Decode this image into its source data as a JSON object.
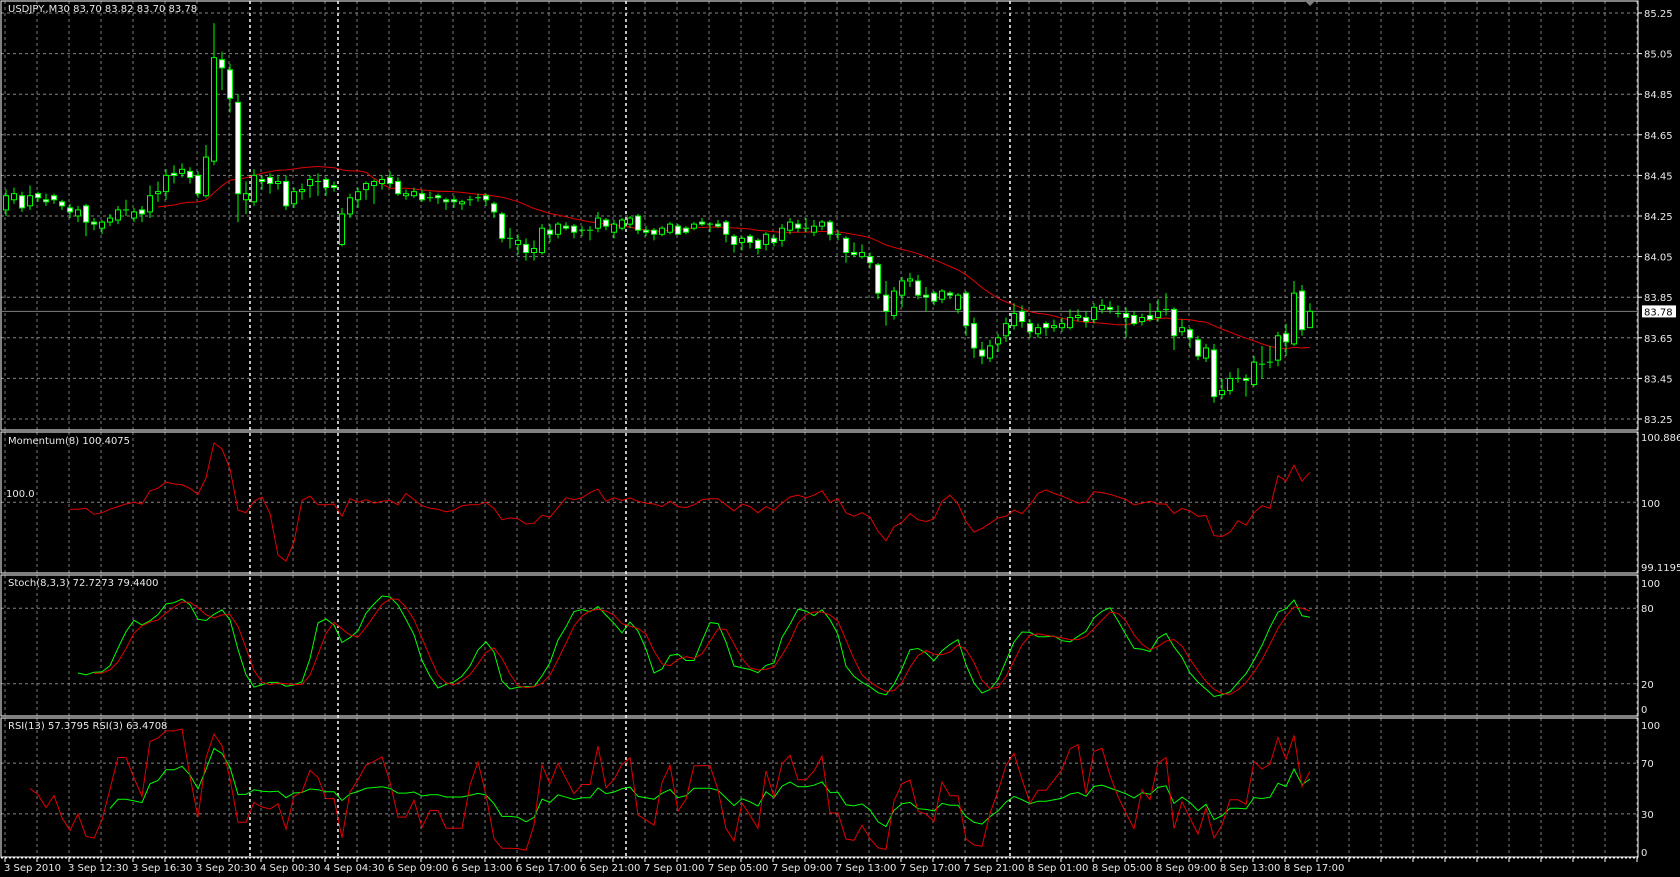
{
  "chart_data": {
    "type": "candlestick",
    "title": "USDJPY.,M30  83.70 83.82 83.70 83.78",
    "current_price": "83.78",
    "ylim": [
      83.25,
      85.25
    ],
    "y_tick_labels": [
      "85.25",
      "85.05",
      "84.85",
      "84.65",
      "84.45",
      "84.25",
      "84.05",
      "83.85",
      "83.65",
      "83.45",
      "83.25"
    ],
    "x_tick_labels": [
      "3 Sep 2010",
      "3 Sep 12:30",
      "3 Sep 16:30",
      "3 Sep 20:30",
      "4 Sep 00:30",
      "4 Sep 04:30",
      "6 Sep 09:00",
      "6 Sep 13:00",
      "6 Sep 17:00",
      "6 Sep 21:00",
      "7 Sep 01:00",
      "7 Sep 05:00",
      "7 Sep 09:00",
      "7 Sep 13:00",
      "7 Sep 17:00",
      "7 Sep 21:00",
      "8 Sep 01:00",
      "8 Sep 05:00",
      "8 Sep 09:00",
      "8 Sep 13:00",
      "8 Sep 17:00"
    ],
    "grid": true,
    "colors": {
      "background": "#000000",
      "candle": "#00ff00",
      "bear_body": "#ffffff",
      "ma": "#e00000",
      "grid": "#b0b0b0",
      "text": "#e8e8e8",
      "signal": "#e00000",
      "main": "#00ff00"
    },
    "bars_format": [
      "open",
      "high",
      "low",
      "close"
    ],
    "bars": [
      [
        84.28,
        84.38,
        84.25,
        84.35
      ],
      [
        84.33,
        84.39,
        84.31,
        84.36
      ],
      [
        84.35,
        84.37,
        84.27,
        84.29
      ],
      [
        84.3,
        84.4,
        84.28,
        84.35
      ],
      [
        84.36,
        84.37,
        84.32,
        84.34
      ],
      [
        84.33,
        84.36,
        84.3,
        84.32
      ],
      [
        84.35,
        84.36,
        84.31,
        84.33
      ],
      [
        84.32,
        84.33,
        84.28,
        84.3
      ],
      [
        84.29,
        84.31,
        84.24,
        84.27
      ],
      [
        84.25,
        84.3,
        84.22,
        84.28
      ],
      [
        84.3,
        84.31,
        84.15,
        84.22
      ],
      [
        84.22,
        84.24,
        84.18,
        84.21
      ],
      [
        84.19,
        84.23,
        84.16,
        84.22
      ],
      [
        84.22,
        84.26,
        84.2,
        84.24
      ],
      [
        84.23,
        84.3,
        84.21,
        84.28
      ],
      [
        84.28,
        84.33,
        84.25,
        84.28
      ],
      [
        84.24,
        84.29,
        84.22,
        84.27
      ],
      [
        84.28,
        84.3,
        84.22,
        84.26
      ],
      [
        84.27,
        84.4,
        84.24,
        84.35
      ],
      [
        84.36,
        84.42,
        84.32,
        84.37
      ],
      [
        84.37,
        84.48,
        84.33,
        84.45
      ],
      [
        84.46,
        84.5,
        84.41,
        84.45
      ],
      [
        84.46,
        84.51,
        84.44,
        84.48
      ],
      [
        84.47,
        84.49,
        84.41,
        84.44
      ],
      [
        84.45,
        84.47,
        84.34,
        84.36
      ],
      [
        84.35,
        84.6,
        84.34,
        84.54
      ],
      [
        84.52,
        85.2,
        84.5,
        85.03
      ],
      [
        85.02,
        85.06,
        84.87,
        84.98
      ],
      [
        84.97,
        85.0,
        84.76,
        84.83
      ],
      [
        84.81,
        84.85,
        84.22,
        84.36
      ],
      [
        84.33,
        84.42,
        84.26,
        84.36
      ],
      [
        84.32,
        84.48,
        84.3,
        84.45
      ],
      [
        84.43,
        84.45,
        84.38,
        84.42
      ],
      [
        84.44,
        84.46,
        84.36,
        84.41
      ],
      [
        84.41,
        84.45,
        84.38,
        84.42
      ],
      [
        84.42,
        84.45,
        84.28,
        84.3
      ],
      [
        84.31,
        84.39,
        84.29,
        84.37
      ],
      [
        84.37,
        84.41,
        84.33,
        84.38
      ],
      [
        84.4,
        84.45,
        84.34,
        84.43
      ],
      [
        84.42,
        84.46,
        84.35,
        84.42
      ],
      [
        84.43,
        84.44,
        84.35,
        84.39
      ],
      [
        84.4,
        84.42,
        84.37,
        84.39
      ],
      [
        84.11,
        84.29,
        84.1,
        84.26
      ],
      [
        84.26,
        84.36,
        84.24,
        84.34
      ],
      [
        84.33,
        84.39,
        84.29,
        84.37
      ],
      [
        84.38,
        84.42,
        84.33,
        84.41
      ],
      [
        84.4,
        84.43,
        84.31,
        84.42
      ],
      [
        84.41,
        84.45,
        84.38,
        84.43
      ],
      [
        84.44,
        84.47,
        84.39,
        84.41
      ],
      [
        84.42,
        84.44,
        84.35,
        84.36
      ],
      [
        84.35,
        84.38,
        84.33,
        84.36
      ],
      [
        84.35,
        84.39,
        84.34,
        84.37
      ],
      [
        84.36,
        84.38,
        84.32,
        84.33
      ],
      [
        84.34,
        84.37,
        84.32,
        84.34
      ],
      [
        84.35,
        84.36,
        84.31,
        84.34
      ],
      [
        84.33,
        84.34,
        84.28,
        84.32
      ],
      [
        84.33,
        84.35,
        84.29,
        84.32
      ],
      [
        84.31,
        84.33,
        84.28,
        84.32
      ],
      [
        84.33,
        84.35,
        84.3,
        84.33
      ],
      [
        84.34,
        84.36,
        84.32,
        84.34
      ],
      [
        84.35,
        84.36,
        84.3,
        84.33
      ],
      [
        84.31,
        84.32,
        84.24,
        84.27
      ],
      [
        84.26,
        84.27,
        84.12,
        84.14
      ],
      [
        84.14,
        84.19,
        84.09,
        84.14
      ],
      [
        84.11,
        84.16,
        84.06,
        84.13
      ],
      [
        84.11,
        84.14,
        84.03,
        84.07
      ],
      [
        84.07,
        84.13,
        84.03,
        84.09
      ],
      [
        84.07,
        84.21,
        84.06,
        84.19
      ],
      [
        84.18,
        84.21,
        84.12,
        84.16
      ],
      [
        84.16,
        84.22,
        84.14,
        84.21
      ],
      [
        84.2,
        84.22,
        84.18,
        84.19
      ],
      [
        84.2,
        84.21,
        84.14,
        84.17
      ],
      [
        84.18,
        84.2,
        84.15,
        84.18
      ],
      [
        84.18,
        84.2,
        84.13,
        84.18
      ],
      [
        84.19,
        84.27,
        84.17,
        84.24
      ],
      [
        84.23,
        84.24,
        84.18,
        84.2
      ],
      [
        84.17,
        84.23,
        84.14,
        84.21
      ],
      [
        84.19,
        84.24,
        84.18,
        84.23
      ],
      [
        84.21,
        84.25,
        84.19,
        84.24
      ],
      [
        84.25,
        84.26,
        84.16,
        84.18
      ],
      [
        84.18,
        84.2,
        84.15,
        84.17
      ],
      [
        84.18,
        84.19,
        84.13,
        84.16
      ],
      [
        84.16,
        84.2,
        84.15,
        84.19
      ],
      [
        84.17,
        84.22,
        84.16,
        84.21
      ],
      [
        84.2,
        84.21,
        84.16,
        84.16
      ],
      [
        84.19,
        84.2,
        84.16,
        84.17
      ],
      [
        84.19,
        84.22,
        84.18,
        84.21
      ],
      [
        84.22,
        84.24,
        84.2,
        84.21
      ],
      [
        84.21,
        84.22,
        84.17,
        84.21
      ],
      [
        84.21,
        84.23,
        84.19,
        84.2
      ],
      [
        84.22,
        84.23,
        84.12,
        84.16
      ],
      [
        84.15,
        84.16,
        84.07,
        84.11
      ],
      [
        84.12,
        84.15,
        84.08,
        84.14
      ],
      [
        84.15,
        84.16,
        84.09,
        84.12
      ],
      [
        84.13,
        84.14,
        84.06,
        84.09
      ],
      [
        84.11,
        84.17,
        84.08,
        84.16
      ],
      [
        84.14,
        84.16,
        84.1,
        84.12
      ],
      [
        84.13,
        84.21,
        84.1,
        84.19
      ],
      [
        84.18,
        84.24,
        84.16,
        84.22
      ],
      [
        84.21,
        84.23,
        84.17,
        84.19
      ],
      [
        84.19,
        84.24,
        84.17,
        84.19
      ],
      [
        84.17,
        84.23,
        84.15,
        84.2
      ],
      [
        84.2,
        84.23,
        84.18,
        84.22
      ],
      [
        84.22,
        84.23,
        84.13,
        84.16
      ],
      [
        84.16,
        84.18,
        84.13,
        84.16
      ],
      [
        84.14,
        84.15,
        84.02,
        84.07
      ],
      [
        84.07,
        84.12,
        84.05,
        84.06
      ],
      [
        84.05,
        84.11,
        84.04,
        84.07
      ],
      [
        84.05,
        84.07,
        83.99,
        84.02
      ],
      [
        84.01,
        84.02,
        83.84,
        83.87
      ],
      [
        83.86,
        83.93,
        83.71,
        83.78
      ],
      [
        83.76,
        83.9,
        83.74,
        83.88
      ],
      [
        83.86,
        83.95,
        83.8,
        83.93
      ],
      [
        83.93,
        83.97,
        83.9,
        83.94
      ],
      [
        83.93,
        83.96,
        83.84,
        83.86
      ],
      [
        83.86,
        83.9,
        83.78,
        83.85
      ],
      [
        83.87,
        83.88,
        83.81,
        83.83
      ],
      [
        83.84,
        83.89,
        83.82,
        83.88
      ],
      [
        83.87,
        83.88,
        83.84,
        83.86
      ],
      [
        83.79,
        83.87,
        83.77,
        83.86
      ],
      [
        83.87,
        83.88,
        83.66,
        83.71
      ],
      [
        83.72,
        83.75,
        83.55,
        83.6
      ],
      [
        83.59,
        83.63,
        83.52,
        83.56
      ],
      [
        83.55,
        83.64,
        83.53,
        83.61
      ],
      [
        83.62,
        83.67,
        83.58,
        83.65
      ],
      [
        83.66,
        83.75,
        83.63,
        83.72
      ],
      [
        83.71,
        83.82,
        83.69,
        83.77
      ],
      [
        83.78,
        83.81,
        83.7,
        83.73
      ],
      [
        83.72,
        83.74,
        83.65,
        83.68
      ],
      [
        83.67,
        83.72,
        83.65,
        83.7
      ],
      [
        83.72,
        83.73,
        83.66,
        83.7
      ],
      [
        83.7,
        83.74,
        83.68,
        83.71
      ],
      [
        83.7,
        83.75,
        83.68,
        83.72
      ],
      [
        83.7,
        83.79,
        83.69,
        83.75
      ],
      [
        83.75,
        83.79,
        83.73,
        83.76
      ],
      [
        83.75,
        83.78,
        83.7,
        83.73
      ],
      [
        83.74,
        83.82,
        83.72,
        83.8
      ],
      [
        83.79,
        83.84,
        83.77,
        83.81
      ],
      [
        83.8,
        83.83,
        83.77,
        83.79
      ],
      [
        83.77,
        83.81,
        83.75,
        83.77
      ],
      [
        83.77,
        83.8,
        83.65,
        83.75
      ],
      [
        83.76,
        83.78,
        83.71,
        83.72
      ],
      [
        83.73,
        83.77,
        83.71,
        83.75
      ],
      [
        83.76,
        83.82,
        83.73,
        83.74
      ],
      [
        83.75,
        83.84,
        83.73,
        83.78
      ],
      [
        83.79,
        83.87,
        83.76,
        83.79
      ],
      [
        83.79,
        83.8,
        83.59,
        83.66
      ],
      [
        83.68,
        83.74,
        83.66,
        83.7
      ],
      [
        83.69,
        83.7,
        83.6,
        83.65
      ],
      [
        83.64,
        83.66,
        83.54,
        83.56
      ],
      [
        83.55,
        83.62,
        83.53,
        83.6
      ],
      [
        83.59,
        83.62,
        83.33,
        83.36
      ],
      [
        83.37,
        83.45,
        83.35,
        83.39
      ],
      [
        83.39,
        83.48,
        83.37,
        83.45
      ],
      [
        83.45,
        83.5,
        83.43,
        83.45
      ],
      [
        83.45,
        83.47,
        83.36,
        83.44
      ],
      [
        83.42,
        83.56,
        83.41,
        83.53
      ],
      [
        83.52,
        83.61,
        83.45,
        83.52
      ],
      [
        83.53,
        83.61,
        83.5,
        83.53
      ],
      [
        83.54,
        83.68,
        83.51,
        83.66
      ],
      [
        83.67,
        83.72,
        83.56,
        83.63
      ],
      [
        83.62,
        83.93,
        83.61,
        83.87
      ],
      [
        83.88,
        83.91,
        83.66,
        83.69
      ],
      [
        83.7,
        83.82,
        83.7,
        83.78
      ]
    ],
    "indicators": [
      {
        "label": "Momentum(8) 100.4075",
        "type": "line",
        "ylim": [
          99.1195,
          100.8865
        ],
        "tick_labels": [
          "100.8865",
          "100",
          "99.1195"
        ],
        "level_label": "100.0"
      },
      {
        "label": "Stoch(8,3,3) 72.7273 79.4400",
        "type": "line",
        "ylim": [
          0,
          100
        ],
        "tick_labels": [
          "100",
          "80",
          "20",
          "0"
        ]
      },
      {
        "label": "RSI(13) 57.3795  RSI(3) 63.4708",
        "type": "line",
        "ylim": [
          0,
          100
        ],
        "tick_labels": [
          "100",
          "70",
          "30",
          "0"
        ]
      }
    ]
  }
}
